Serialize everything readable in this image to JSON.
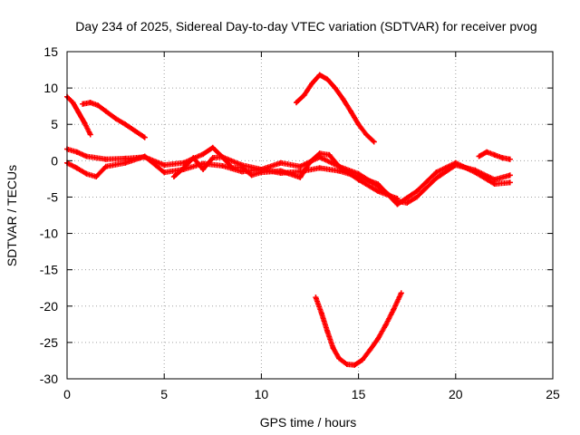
{
  "chart_data": {
    "type": "scatter",
    "title": "Day 234 of 2025, Sidereal Day-to-day VTEC variation (SDTVAR) for receiver pvog",
    "xlabel": "GPS time / hours",
    "ylabel": "SDTVAR / TECUs",
    "xlim": [
      0,
      25
    ],
    "ylim": [
      -30,
      15
    ],
    "xticks": [
      0,
      5,
      10,
      15,
      20,
      25
    ],
    "yticks": [
      15,
      10,
      5,
      0,
      -5,
      -10,
      -15,
      -20,
      -25,
      -30
    ],
    "grid": true,
    "marker": "plus",
    "series_color": "#ff0000",
    "series": [
      {
        "name": "arc-1",
        "x": [
          0.0,
          0.3,
          0.6,
          0.9,
          1.2
        ],
        "y": [
          8.8,
          8.0,
          6.6,
          5.2,
          3.6
        ]
      },
      {
        "name": "arc-2",
        "x": [
          0.8,
          1.2,
          1.6,
          2.0,
          2.5,
          3.0,
          3.5,
          4.0
        ],
        "y": [
          7.8,
          8.0,
          7.6,
          6.8,
          5.8,
          5.0,
          4.1,
          3.2
        ]
      },
      {
        "name": "arc-3",
        "x": [
          11.8,
          12.2,
          12.6,
          13.0,
          13.4,
          13.8,
          14.2,
          14.6,
          15.0,
          15.4,
          15.8
        ],
        "y": [
          8.0,
          9.0,
          10.6,
          11.8,
          11.2,
          10.0,
          8.5,
          6.8,
          5.0,
          3.6,
          2.6
        ]
      },
      {
        "name": "arc-4",
        "x": [
          12.8,
          13.1,
          13.4,
          13.7,
          14.0,
          14.4,
          14.8,
          15.2,
          15.6,
          16.0,
          16.4,
          16.8,
          17.2
        ],
        "y": [
          -18.8,
          -21.0,
          -23.5,
          -25.8,
          -27.2,
          -28.0,
          -28.1,
          -27.4,
          -26.0,
          -24.5,
          -22.6,
          -20.5,
          -18.2
        ]
      },
      {
        "name": "arc-5",
        "x": [
          0.0,
          0.5,
          1.0,
          2.0,
          3.0,
          4.0,
          5.0,
          6.0,
          7.0,
          7.5,
          8.0,
          9.0,
          10.0,
          11.0,
          12.0,
          13.0,
          14.0,
          15.0,
          16.0,
          17.0,
          17.5,
          18.0,
          19.0,
          20.0,
          21.0,
          22.0,
          22.8
        ],
        "y": [
          1.6,
          1.2,
          0.6,
          0.2,
          0.3,
          0.5,
          -0.6,
          -0.3,
          0.9,
          1.8,
          0.5,
          -0.6,
          -1.2,
          -0.3,
          -0.8,
          0.5,
          -0.8,
          -1.8,
          -3.5,
          -5.6,
          -5.8,
          -5.0,
          -2.4,
          -0.6,
          -1.3,
          -2.6,
          -2.0
        ]
      },
      {
        "name": "arc-6",
        "x": [
          0.0,
          0.5,
          1.0,
          1.5,
          2.0,
          3.0,
          4.0,
          5.0,
          6.0,
          7.0,
          8.0,
          9.0,
          10.0,
          11.0,
          12.0,
          13.0,
          14.0,
          15.0,
          16.0,
          17.0,
          18.0,
          19.0,
          20.0,
          21.0,
          22.0,
          22.8
        ],
        "y": [
          -0.3,
          -1.0,
          -1.8,
          -2.2,
          -0.8,
          -0.3,
          0.6,
          -1.6,
          -1.2,
          -0.4,
          -0.7,
          -1.5,
          -1.2,
          -1.7,
          -1.5,
          -1.0,
          -1.4,
          -2.2,
          -3.2,
          -6.0,
          -4.2,
          -1.6,
          -0.3,
          -1.6,
          -3.2,
          -3.0
        ]
      },
      {
        "name": "arc-7",
        "x": [
          5.5,
          6.0,
          6.5,
          7.0,
          7.5,
          8.0,
          8.5,
          9.0,
          9.5,
          10.0,
          11.0,
          12.0,
          12.5,
          13.0,
          13.5,
          14.0,
          15.0,
          16.0,
          17.0
        ],
        "y": [
          -2.2,
          -1.0,
          0.4,
          -1.2,
          0.4,
          0.5,
          -1.0,
          -0.9,
          -2.0,
          -1.6,
          -1.4,
          -2.3,
          -0.2,
          1.0,
          0.8,
          -0.8,
          -2.6,
          -4.2,
          -5.2
        ]
      },
      {
        "name": "arc-8",
        "x": [
          21.2,
          21.6,
          22.0,
          22.4,
          22.8
        ],
        "y": [
          0.6,
          1.2,
          0.8,
          0.4,
          0.2
        ]
      }
    ]
  }
}
